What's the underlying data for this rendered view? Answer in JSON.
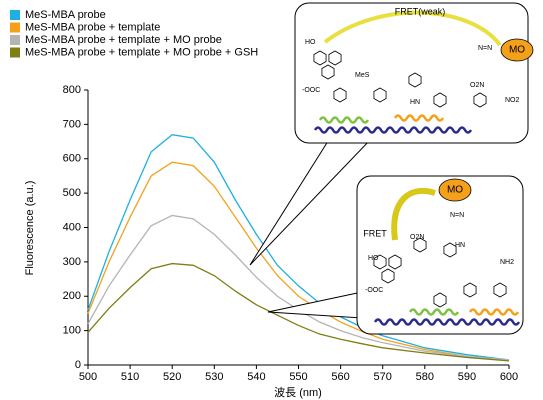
{
  "chart_data": {
    "type": "line",
    "x_label": "波長 (nm)",
    "y_label": "Fluorescence (a.u.)",
    "x": [
      500,
      505,
      510,
      515,
      520,
      525,
      530,
      535,
      540,
      545,
      550,
      555,
      560,
      565,
      570,
      580,
      590,
      600
    ],
    "series": [
      {
        "name": "MeS-MBA probe",
        "color": "#1fb0e0",
        "values": [
          160,
          330,
          480,
          620,
          670,
          660,
          590,
          480,
          380,
          290,
          230,
          180,
          140,
          110,
          85,
          50,
          30,
          15
        ]
      },
      {
        "name": "MeS-MBA probe + template",
        "color": "#f5a01a",
        "values": [
          150,
          300,
          430,
          550,
          590,
          580,
          520,
          430,
          340,
          260,
          200,
          160,
          125,
          98,
          75,
          45,
          25,
          12
        ]
      },
      {
        "name": "MeS-MBA probe + template + MO probe",
        "color": "#b4b4b4",
        "values": [
          120,
          230,
          320,
          405,
          435,
          425,
          380,
          320,
          255,
          200,
          160,
          125,
          100,
          80,
          65,
          40,
          25,
          15
        ]
      },
      {
        "name": "MeS-MBA probe + template + MO probe + GSH",
        "color": "#7f7f14",
        "values": [
          95,
          165,
          225,
          280,
          295,
          290,
          260,
          215,
          175,
          145,
          115,
          90,
          75,
          62,
          50,
          35,
          22,
          12
        ]
      }
    ],
    "xlim": [
      500,
      600
    ],
    "xticks": [
      500,
      510,
      520,
      530,
      540,
      550,
      560,
      570,
      580,
      590,
      600
    ],
    "ylim": [
      0,
      800
    ],
    "yticks": [
      0,
      100,
      200,
      300,
      400,
      500,
      600,
      700,
      800
    ],
    "grid": false,
    "legend": "top-left"
  },
  "insets": [
    {
      "arrow_label": "FRET(weak)",
      "acceptor": "MO",
      "atoms": [
        "HO",
        "-OOC",
        "MeS",
        "HN",
        "NO2",
        "O2N",
        "N=N"
      ]
    },
    {
      "arrow_label": "FRET",
      "acceptor": "MO",
      "atoms": [
        "HO",
        "-OOC",
        "O2N",
        "NH2",
        "HN",
        "N=N"
      ]
    }
  ]
}
